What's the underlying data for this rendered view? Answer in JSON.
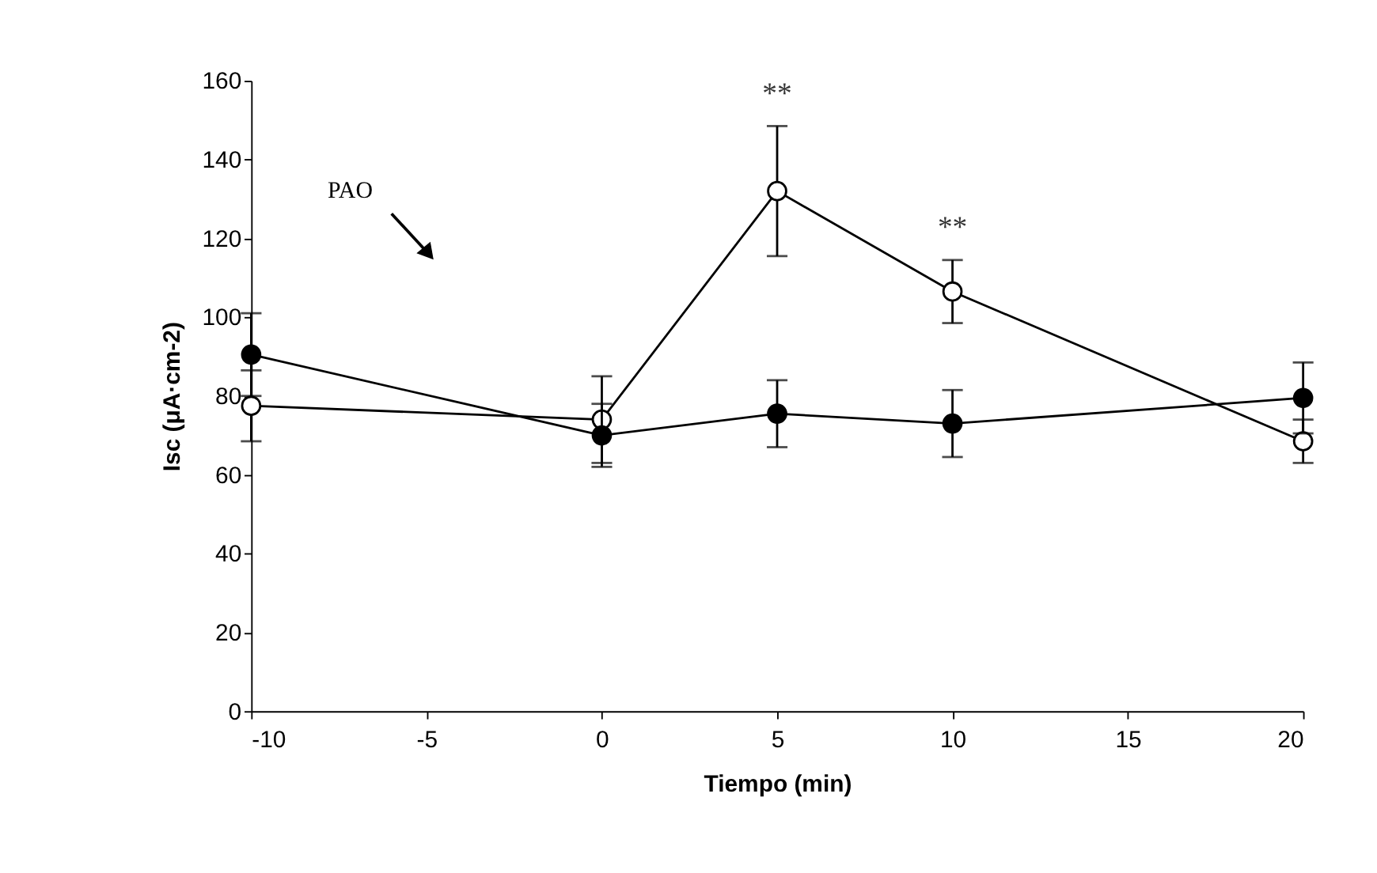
{
  "chart_data": {
    "type": "line",
    "xlabel": "Tiempo (min)",
    "ylabel": "Isc (μA·cm-2)",
    "x": [
      -10,
      0,
      5,
      10,
      20
    ],
    "series": [
      {
        "color": "#000000",
        "values": [
          77.5,
          74,
          132,
          106.5,
          68.5
        ],
        "errors": [
          9,
          11,
          16.5,
          8,
          5.5
        ]
      },
      {
        "color": "#000000",
        "values": [
          90.5,
          70,
          75.5,
          73,
          79.5
        ],
        "errors": [
          10.5,
          8,
          8.5,
          8.5,
          9
        ]
      }
    ],
    "xlim": [
      -10,
      20
    ],
    "xticks": [
      -10,
      -5,
      0,
      5,
      10,
      15,
      20
    ],
    "ylim": [
      0,
      160
    ],
    "yticks": [
      0,
      20,
      40,
      60,
      80,
      100,
      120,
      140,
      160
    ],
    "grid": false,
    "marker": "circle",
    "line_style": "solid",
    "annotations": [
      "PAO",
      {
        "text": "**",
        "x": 5,
        "y": 148.5
      },
      {
        "text": "**",
        "x": 10,
        "y": 114.5
      }
    ]
  }
}
